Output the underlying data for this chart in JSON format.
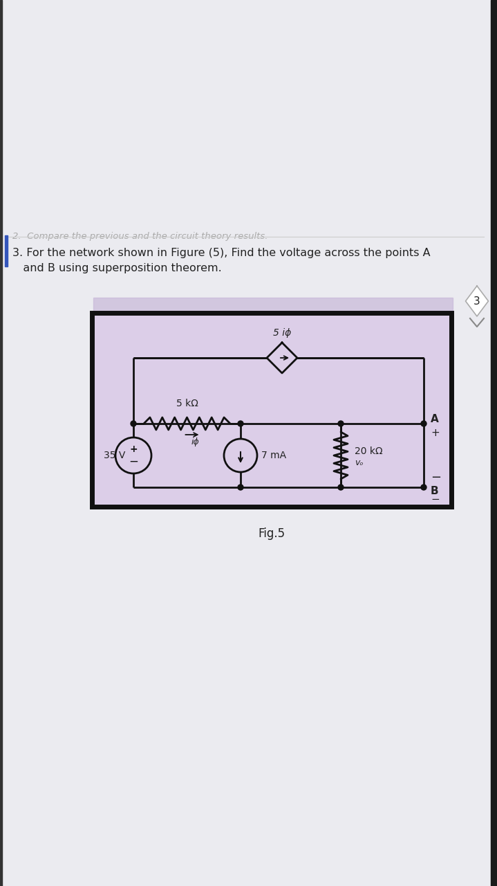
{
  "page_bg": "#ebebf0",
  "circuit_bg": "#dccee8",
  "circuit_border": "#111111",
  "text_color": "#222222",
  "title_line1": "3. For the network shown in Figure (5), Find the voltage across the points A",
  "title_line2": "   and B using superposition theorem.",
  "prev_text": "2.  Compare the previous and the circuit theory results.",
  "fig_label": "Fig.5",
  "resistor_5k_label": "5 kΩ",
  "resistor_20k_label": "20 kΩ",
  "voltage_label": "35 V",
  "current_label": "7 mA",
  "dependent_label": "5 iϕ",
  "node_A": "A",
  "node_B": "B",
  "i_phi_label": "iϕ",
  "v_o_label": "vₒ",
  "page_number": "3",
  "wire_color": "#111111",
  "right_bar_color": "#1a1a1a",
  "faded_bg_colors": [
    "#d0a0a0",
    "#c09090",
    "#b0b0c0",
    "#c0a0b0"
  ],
  "deco_bg": "#c8a8c8"
}
